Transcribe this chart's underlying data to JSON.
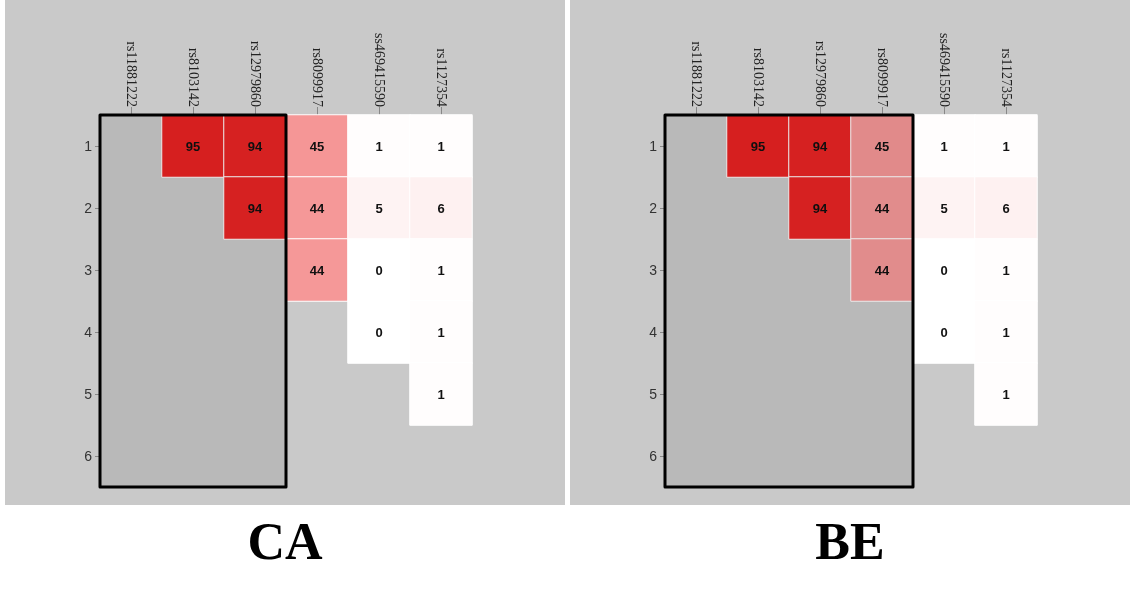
{
  "chart_data": [
    {
      "type": "heatmap",
      "title": "CA",
      "data_labels": true,
      "categories": [
        "rs11881222",
        "rs8103142",
        "rs12979860",
        "rs8099917",
        "ss469415590",
        "rs1127354"
      ],
      "y_categories": [
        "1",
        "2",
        "3",
        "4",
        "5",
        "6"
      ],
      "cells": [
        [
          null,
          95,
          94,
          45,
          1,
          1
        ],
        [
          null,
          null,
          94,
          44,
          5,
          6
        ],
        [
          null,
          null,
          null,
          44,
          0,
          1
        ],
        [
          null,
          null,
          null,
          null,
          0,
          1
        ],
        [
          null,
          null,
          null,
          null,
          null,
          1
        ],
        [
          null,
          null,
          null,
          null,
          null,
          null
        ]
      ],
      "bands": [
        {
          "axis": "x",
          "from": "rs11881222",
          "to": "rs12979860",
          "color": "#000000"
        }
      ]
    },
    {
      "type": "heatmap",
      "title": "BE",
      "data_labels": true,
      "categories": [
        "rs11881222",
        "rs8103142",
        "rs12979860",
        "rs8099917",
        "ss469415590",
        "rs1127354"
      ],
      "y_categories": [
        "1",
        "2",
        "3",
        "4",
        "5",
        "6"
      ],
      "cells": [
        [
          null,
          95,
          94,
          45,
          1,
          1
        ],
        [
          null,
          null,
          94,
          44,
          5,
          6
        ],
        [
          null,
          null,
          null,
          44,
          0,
          1
        ],
        [
          null,
          null,
          null,
          null,
          0,
          1
        ],
        [
          null,
          null,
          null,
          null,
          null,
          1
        ],
        [
          null,
          null,
          null,
          null,
          null,
          null
        ]
      ],
      "bands": [
        {
          "axis": "x",
          "from": "rs11881222",
          "to": "rs8099917",
          "color": "#000000"
        }
      ]
    }
  ]
}
